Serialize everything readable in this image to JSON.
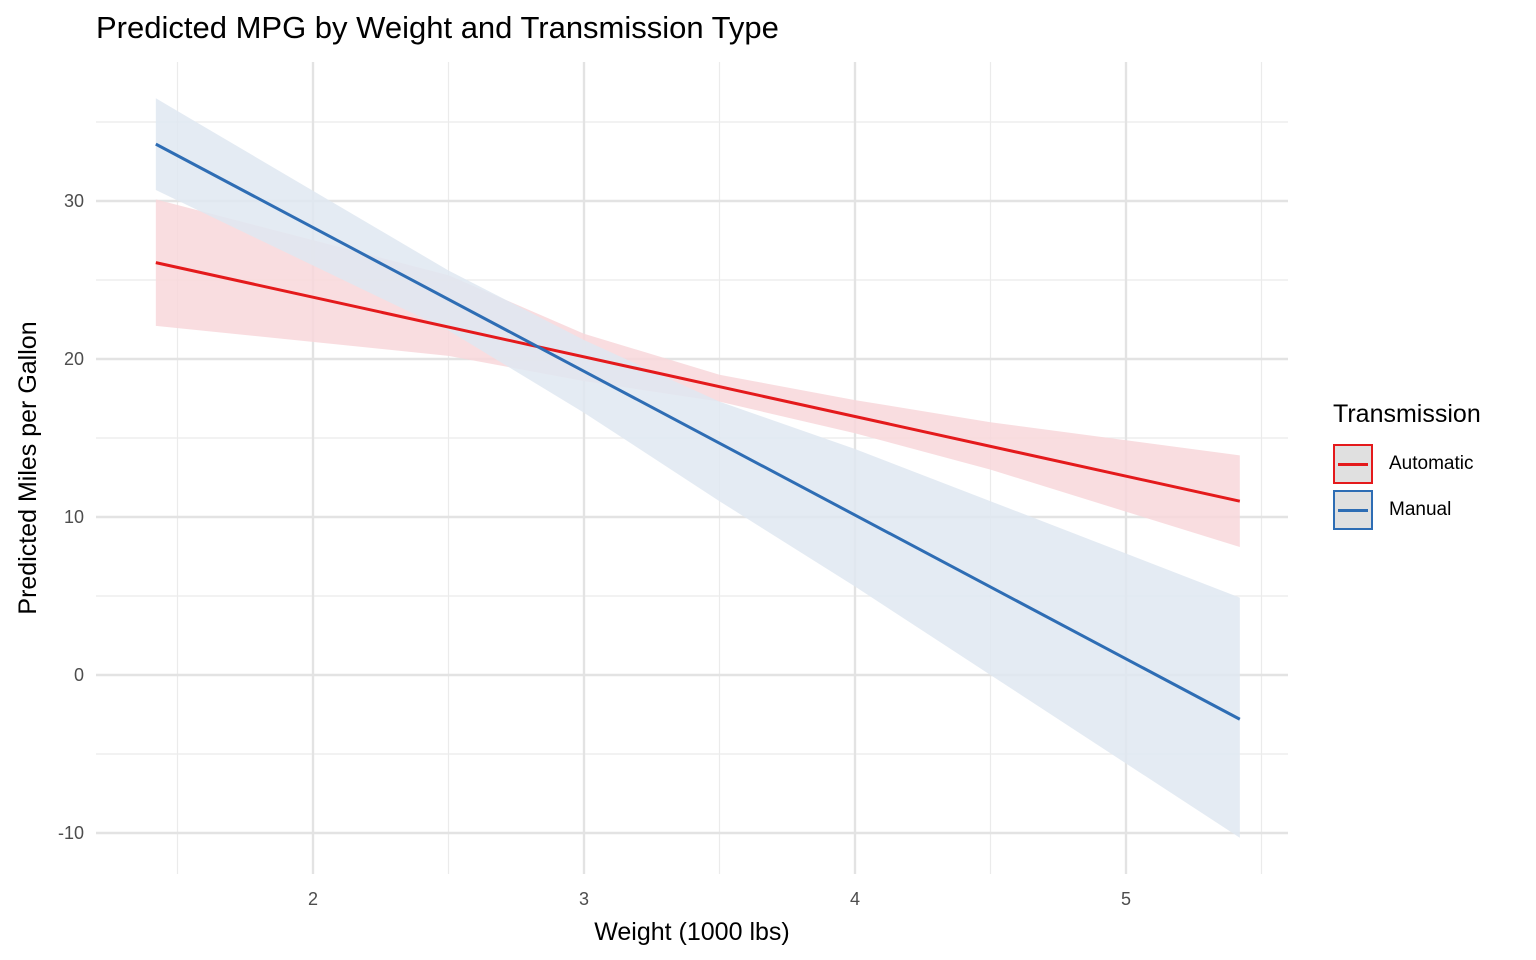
{
  "chart_data": {
    "type": "line",
    "title": "Predicted MPG by Weight and Transmission Type",
    "xlabel": "Weight (1000 lbs)",
    "ylabel": "Predicted Miles per Gallon",
    "xlim": [
      1.2,
      5.6
    ],
    "ylim": [
      -12,
      38
    ],
    "xticks": [
      2,
      3,
      4,
      5
    ],
    "xtick_labels": [
      "2",
      "3",
      "4",
      "5"
    ],
    "yticks": [
      -10,
      0,
      10,
      20,
      30
    ],
    "ytick_labels": [
      "-10",
      "0",
      "10",
      "20",
      "30"
    ],
    "grid": true,
    "legend": {
      "title": "Transmission",
      "position": "right"
    },
    "series": [
      {
        "name": "Automatic",
        "color": "#E41A1C",
        "fill": "#F8D7DB",
        "x": [
          1.42,
          5.42
        ],
        "y": [
          26.1,
          11.0
        ],
        "lower": [
          22.1,
          8.1
        ],
        "upper": [
          30.1,
          13.9
        ],
        "band_x": [
          1.42,
          2.5,
          3.0,
          3.5,
          4.0,
          4.5,
          5.42
        ],
        "band_lower": [
          22.1,
          20.2,
          18.6,
          17.3,
          15.3,
          13.0,
          8.1
        ],
        "band_upper": [
          30.1,
          25.3,
          21.6,
          19.0,
          17.4,
          16.0,
          13.9
        ]
      },
      {
        "name": "Manual",
        "color": "#2E6DB4",
        "fill": "#DFE7F1",
        "x": [
          1.42,
          5.42
        ],
        "y": [
          33.6,
          -2.8
        ],
        "band_x": [
          1.42,
          2.5,
          3.0,
          3.5,
          4.0,
          4.5,
          5.42
        ],
        "band_lower": [
          30.7,
          21.8,
          16.6,
          11.0,
          5.6,
          0.0,
          -10.3
        ],
        "band_upper": [
          36.5,
          25.6,
          21.2,
          17.3,
          14.3,
          11.0,
          4.9
        ]
      }
    ]
  }
}
